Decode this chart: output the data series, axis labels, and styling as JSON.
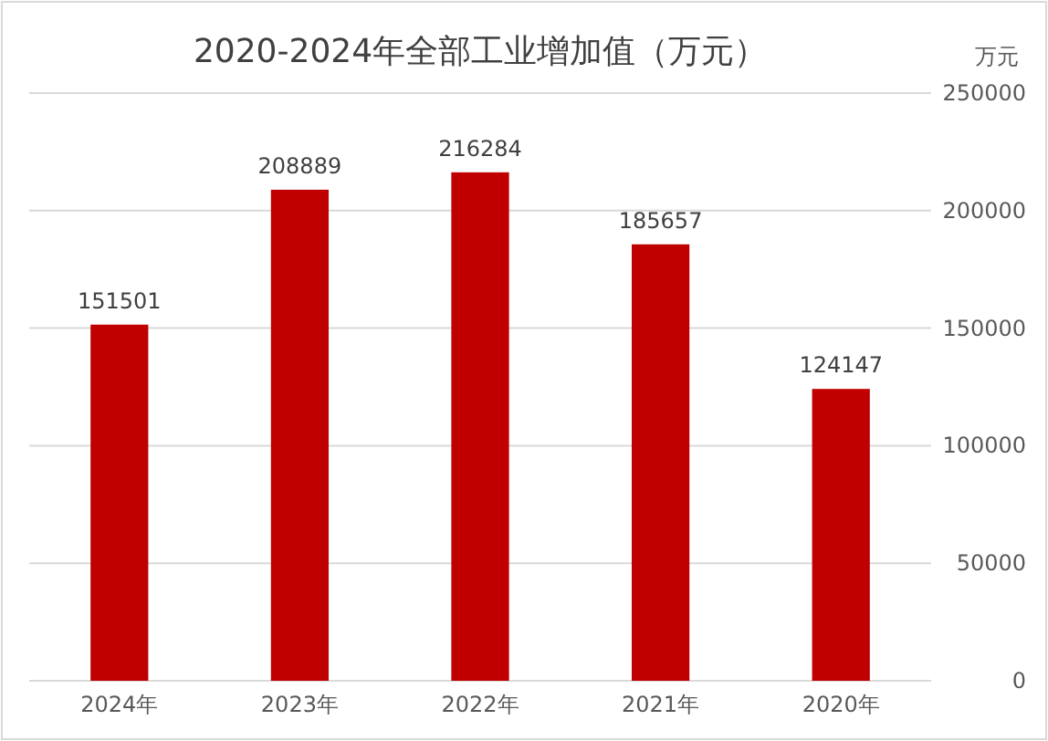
{
  "chart_data": {
    "type": "bar",
    "title": "2020-2024年全部工业增加值（万元）",
    "ylabel": "万元",
    "categories": [
      "2024年",
      "2023年",
      "2022年",
      "2021年",
      "2020年"
    ],
    "values": [
      151501,
      208889,
      216284,
      185657,
      124147
    ],
    "color": "#c00000",
    "ylim": [
      0,
      250000
    ],
    "yticks": [
      0,
      50000,
      100000,
      150000,
      200000,
      250000
    ],
    "grid": "y",
    "data_labels": true
  }
}
